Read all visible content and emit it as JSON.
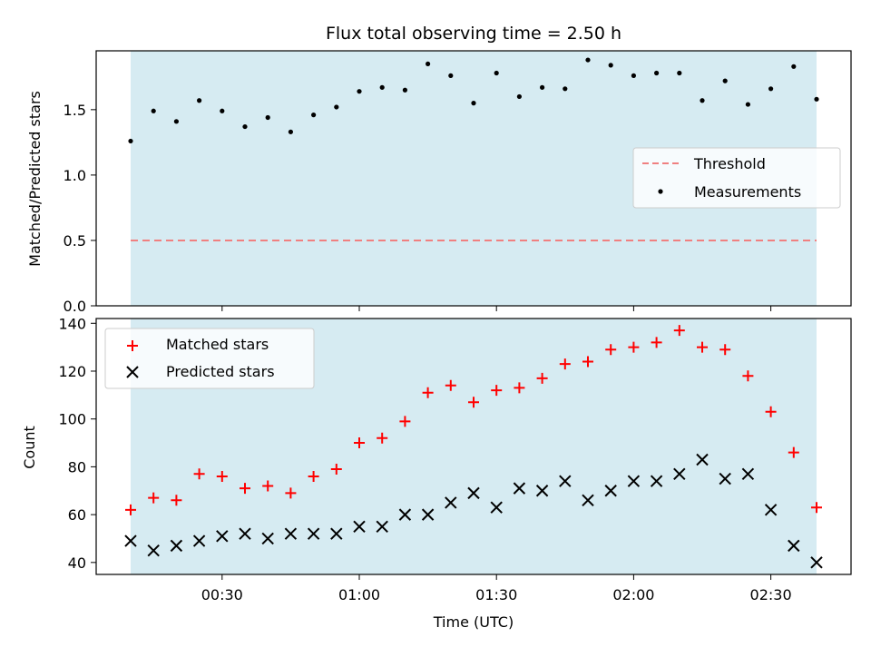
{
  "chart_data": [
    {
      "type": "scatter",
      "title": "Flux total observing time = 2.50 h",
      "ylabel": "Matched/Predicted stars",
      "xlabel": "",
      "ylim": [
        0,
        1.95
      ],
      "yticks": [
        "0.0",
        "0.5",
        "1.0",
        "1.5"
      ],
      "shaded_span": [
        "00:10",
        "02:40"
      ],
      "shade_color": "#add8e6",
      "legend_position": "center-right",
      "x": [
        "00:10",
        "00:15",
        "00:20",
        "00:25",
        "00:30",
        "00:35",
        "00:40",
        "00:45",
        "00:50",
        "00:55",
        "01:00",
        "01:05",
        "01:10",
        "01:15",
        "01:20",
        "01:25",
        "01:30",
        "01:35",
        "01:40",
        "01:45",
        "01:50",
        "01:55",
        "02:00",
        "02:05",
        "02:10",
        "02:15",
        "02:20",
        "02:25",
        "02:30",
        "02:35",
        "02:40"
      ],
      "threshold": {
        "name": "Threshold",
        "value": 0.5,
        "color": "#f08080",
        "style": "dashed"
      },
      "series": [
        {
          "name": "Measurements",
          "marker": "dot",
          "color": "#000000",
          "values": [
            1.26,
            1.49,
            1.41,
            1.57,
            1.49,
            1.37,
            1.44,
            1.33,
            1.46,
            1.52,
            1.64,
            1.67,
            1.65,
            1.85,
            1.76,
            1.55,
            1.78,
            1.6,
            1.67,
            1.66,
            1.88,
            1.84,
            1.76,
            1.78,
            1.78,
            1.57,
            1.72,
            1.54,
            1.66,
            1.83,
            1.58
          ]
        }
      ]
    },
    {
      "type": "scatter",
      "title": "",
      "ylabel": "Count",
      "xlabel": "Time (UTC)",
      "ylim": [
        35,
        142
      ],
      "yticks": [
        "40",
        "60",
        "80",
        "100",
        "120",
        "140"
      ],
      "xticks": [
        "00:30",
        "01:00",
        "01:30",
        "02:00",
        "02:30"
      ],
      "shaded_span": [
        "00:10",
        "02:40"
      ],
      "shade_color": "#add8e6",
      "legend_position": "upper-left",
      "x": [
        "00:10",
        "00:15",
        "00:20",
        "00:25",
        "00:30",
        "00:35",
        "00:40",
        "00:45",
        "00:50",
        "00:55",
        "01:00",
        "01:05",
        "01:10",
        "01:15",
        "01:20",
        "01:25",
        "01:30",
        "01:35",
        "01:40",
        "01:45",
        "01:50",
        "01:55",
        "02:00",
        "02:05",
        "02:10",
        "02:15",
        "02:20",
        "02:25",
        "02:30",
        "02:35",
        "02:40"
      ],
      "series": [
        {
          "name": "Matched stars",
          "marker": "plus",
          "color": "#ff0000",
          "values": [
            62,
            67,
            66,
            77,
            76,
            71,
            72,
            69,
            76,
            79,
            90,
            92,
            99,
            111,
            114,
            107,
            112,
            113,
            117,
            123,
            124,
            129,
            130,
            132,
            137,
            130,
            129,
            118,
            103,
            86,
            63
          ]
        },
        {
          "name": "Predicted stars",
          "marker": "x",
          "color": "#000000",
          "values": [
            49,
            45,
            47,
            49,
            51,
            52,
            50,
            52,
            52,
            52,
            55,
            55,
            60,
            60,
            65,
            69,
            63,
            71,
            70,
            74,
            66,
            70,
            74,
            74,
            77,
            83,
            75,
            77,
            62,
            47,
            40
          ]
        }
      ]
    }
  ]
}
